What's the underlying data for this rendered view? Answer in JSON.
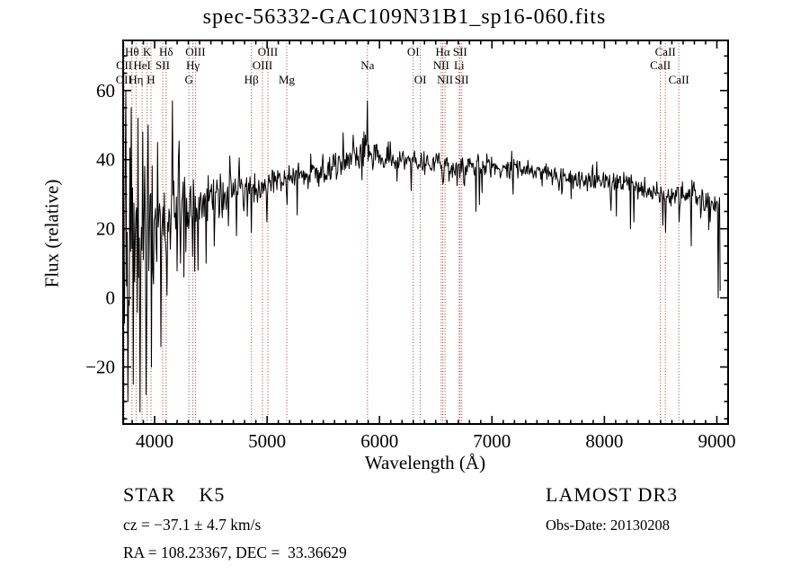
{
  "title": "spec-56332-GAC109N31B1_sp16-060.fits",
  "footer": {
    "class_label": "STAR    K5",
    "cz_label": "cz = −37.1 ± 4.7 km/s",
    "radec_label": "RA = 108.23367, DEC =  33.36629",
    "survey_label": "LAMOST DR3",
    "obsdate_label": "Obs-Date: 20130208"
  },
  "chart_data": {
    "type": "line",
    "title": "spec-56332-GAC109N31B1_sp16-060.fits",
    "xlabel": "Wavelength (Å)",
    "ylabel": "Flux (relative)",
    "xlim": [
      3720,
      9100
    ],
    "ylim": [
      -36.5,
      74.5
    ],
    "x_ticks": [
      4000,
      5000,
      6000,
      7000,
      8000,
      9000
    ],
    "y_ticks": [
      -20,
      0,
      20,
      40,
      60
    ],
    "x_minor_step": 100,
    "y_minor_step": 5,
    "grid": false,
    "legend": "none",
    "line_color": "#000000",
    "marker_line_color": "#a23636",
    "sample_step": 6,
    "x_end": 9030,
    "seed": 20130208,
    "spectral_lines": [
      {
        "label": "OII",
        "wavelength": 3726,
        "row": 3
      },
      {
        "label": "OII",
        "wavelength": 3729,
        "row": 2
      },
      {
        "label": "Hθ",
        "wavelength": 3798,
        "row": 1
      },
      {
        "label": "Hη",
        "wavelength": 3835,
        "row": 3
      },
      {
        "label": "HeI",
        "wavelength": 3889,
        "row": 2
      },
      {
        "label": "K",
        "wavelength": 3933,
        "row": 1
      },
      {
        "label": "H",
        "wavelength": 3968,
        "row": 3
      },
      {
        "label": "SII",
        "wavelength": 4072,
        "row": 2
      },
      {
        "label": "Hδ",
        "wavelength": 4102,
        "row": 1
      },
      {
        "label": "G",
        "wavelength": 4305,
        "row": 3
      },
      {
        "label": "Hγ",
        "wavelength": 4340,
        "row": 2
      },
      {
        "label": "OIII",
        "wavelength": 4363,
        "row": 1
      },
      {
        "label": "Hβ",
        "wavelength": 4861,
        "row": 3
      },
      {
        "label": "OIII",
        "wavelength": 4959,
        "row": 2
      },
      {
        "label": "OIII",
        "wavelength": 5007,
        "row": 1
      },
      {
        "label": "Mg",
        "wavelength": 5175,
        "row": 3
      },
      {
        "label": "Na",
        "wavelength": 5893,
        "row": 2
      },
      {
        "label": "OI",
        "wavelength": 6300,
        "row": 1
      },
      {
        "label": "OI",
        "wavelength": 6363,
        "row": 3
      },
      {
        "label": "NII",
        "wavelength": 6548,
        "row": 2
      },
      {
        "label": "Hα",
        "wavelength": 6563,
        "row": 1
      },
      {
        "label": "NII",
        "wavelength": 6583,
        "row": 3
      },
      {
        "label": "Li",
        "wavelength": 6708,
        "row": 2
      },
      {
        "label": "SII",
        "wavelength": 6716,
        "row": 1
      },
      {
        "label": "SII",
        "wavelength": 6731,
        "row": 3
      },
      {
        "label": "CaII",
        "wavelength": 8498,
        "row": 2
      },
      {
        "label": "CaII",
        "wavelength": 8542,
        "row": 1
      },
      {
        "label": "CaII",
        "wavelength": 8662,
        "row": 3
      }
    ],
    "continuum": [
      [
        3720,
        18
      ],
      [
        3780,
        20
      ],
      [
        3850,
        22
      ],
      [
        3950,
        23
      ],
      [
        4050,
        24
      ],
      [
        4150,
        25
      ],
      [
        4250,
        26
      ],
      [
        4400,
        27
      ],
      [
        4550,
        29
      ],
      [
        4700,
        31
      ],
      [
        4850,
        31
      ],
      [
        5000,
        33
      ],
      [
        5150,
        34
      ],
      [
        5300,
        35
      ],
      [
        5450,
        36
      ],
      [
        5600,
        38
      ],
      [
        5750,
        40
      ],
      [
        5880,
        43
      ],
      [
        5950,
        41
      ],
      [
        6100,
        40
      ],
      [
        6300,
        40
      ],
      [
        6500,
        39
      ],
      [
        6700,
        38
      ],
      [
        6900,
        38
      ],
      [
        7100,
        38
      ],
      [
        7300,
        37
      ],
      [
        7500,
        36
      ],
      [
        7700,
        34
      ],
      [
        7900,
        34
      ],
      [
        8100,
        33
      ],
      [
        8300,
        32
      ],
      [
        8500,
        30
      ],
      [
        8700,
        29
      ],
      [
        8900,
        28
      ],
      [
        9030,
        27
      ]
    ],
    "noise_amp": [
      [
        3720,
        36
      ],
      [
        3800,
        34
      ],
      [
        3880,
        30
      ],
      [
        3950,
        24
      ],
      [
        4050,
        16
      ],
      [
        4150,
        13
      ],
      [
        4300,
        10
      ],
      [
        4500,
        8
      ],
      [
        4700,
        6
      ],
      [
        5000,
        5
      ],
      [
        5400,
        4.5
      ],
      [
        5900,
        5
      ],
      [
        6300,
        3.5
      ],
      [
        6700,
        4
      ],
      [
        7100,
        3.5
      ],
      [
        7600,
        3
      ],
      [
        8000,
        4
      ],
      [
        8400,
        4.5
      ],
      [
        8800,
        4.5
      ],
      [
        9030,
        3
      ]
    ],
    "features": [
      [
        3745,
        60
      ],
      [
        3760,
        -30
      ],
      [
        3790,
        55
      ],
      [
        3810,
        -25
      ],
      [
        3850,
        52
      ],
      [
        3870,
        -33
      ],
      [
        3895,
        48
      ],
      [
        3925,
        -28
      ],
      [
        3940,
        50
      ],
      [
        3970,
        -20
      ],
      [
        4026,
        45
      ],
      [
        4102,
        12
      ],
      [
        4160,
        57
      ],
      [
        4227,
        10
      ],
      [
        4260,
        6
      ],
      [
        4340,
        12
      ],
      [
        4383,
        8
      ],
      [
        4455,
        10
      ],
      [
        4530,
        15
      ],
      [
        4861,
        19
      ],
      [
        5000,
        22
      ],
      [
        5175,
        27
      ],
      [
        5270,
        24
      ],
      [
        5860,
        48
      ],
      [
        5893,
        57
      ],
      [
        6280,
        31
      ],
      [
        6563,
        33
      ],
      [
        6860,
        25
      ],
      [
        6890,
        27
      ],
      [
        7190,
        30
      ],
      [
        7620,
        30
      ],
      [
        8230,
        20
      ],
      [
        8260,
        22
      ],
      [
        8520,
        21
      ],
      [
        8545,
        19
      ],
      [
        8665,
        22
      ],
      [
        8770,
        15
      ],
      [
        8940,
        22
      ],
      [
        9006,
        27
      ],
      [
        9012,
        0
      ],
      [
        9030,
        2
      ]
    ]
  }
}
